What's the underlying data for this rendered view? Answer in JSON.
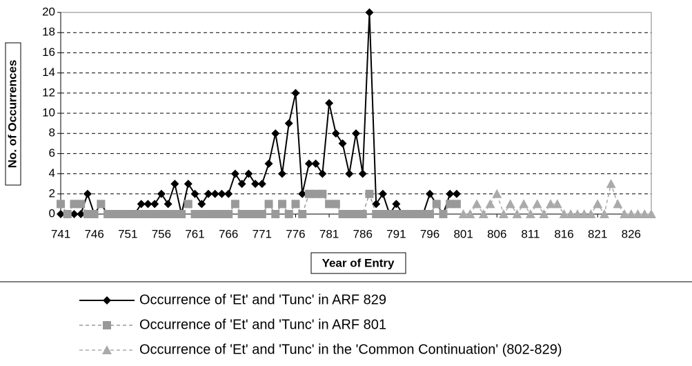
{
  "chart_data": {
    "type": "line",
    "y_label": "No. of Occurrences",
    "x_label": "Year of Entry",
    "x": [
      741,
      742,
      743,
      744,
      745,
      746,
      747,
      748,
      749,
      750,
      751,
      752,
      753,
      754,
      755,
      756,
      757,
      758,
      759,
      760,
      761,
      762,
      763,
      764,
      765,
      766,
      767,
      768,
      769,
      770,
      771,
      772,
      773,
      774,
      775,
      776,
      777,
      778,
      779,
      780,
      781,
      782,
      783,
      784,
      785,
      786,
      787,
      788,
      789,
      790,
      791,
      792,
      793,
      794,
      795,
      796,
      797,
      798,
      799,
      800,
      801,
      802,
      803,
      804,
      805,
      806,
      807,
      808,
      809,
      810,
      811,
      812,
      813,
      814,
      815,
      816,
      817,
      818,
      819,
      820,
      821,
      822,
      823,
      824,
      825,
      826,
      827,
      828,
      829
    ],
    "xlim": [
      741,
      829
    ],
    "xticks": [
      741,
      746,
      751,
      756,
      761,
      766,
      771,
      776,
      781,
      786,
      791,
      796,
      801,
      806,
      811,
      816,
      821,
      826
    ],
    "ylim": [
      0,
      20
    ],
    "yticks": [
      0,
      2,
      4,
      6,
      8,
      10,
      12,
      14,
      16,
      18,
      20
    ],
    "grid": true,
    "series": [
      {
        "name": "Occurrence of 'Et' and 'Tunc' in ARF 829",
        "color": "#000000",
        "marker": "diamond",
        "line_style": "solid",
        "values": [
          0,
          0,
          0,
          0,
          2,
          0,
          1,
          0,
          0,
          0,
          0,
          0,
          1,
          1,
          1,
          2,
          1,
          3,
          0,
          3,
          2,
          1,
          2,
          2,
          2,
          2,
          4,
          3,
          4,
          3,
          3,
          5,
          8,
          4,
          9,
          12,
          2,
          5,
          5,
          4,
          11,
          8,
          7,
          4,
          8,
          4,
          20,
          1,
          2,
          0,
          1,
          0,
          0,
          0,
          0,
          2,
          1,
          0,
          2,
          2,
          null,
          null,
          null,
          null,
          null,
          null,
          null,
          null,
          null,
          null,
          null,
          null,
          null,
          null,
          null,
          null,
          null,
          null,
          null,
          null,
          null,
          null,
          null,
          null,
          null,
          null,
          null,
          null,
          null
        ]
      },
      {
        "name": "Occurrence of 'Et' and 'Tunc' in ARF 801",
        "color": "#999999",
        "marker": "square",
        "line_style": "dashed",
        "values": [
          1,
          0,
          1,
          1,
          0,
          0,
          1,
          0,
          0,
          0,
          0,
          0,
          0,
          0,
          0,
          0,
          0,
          0,
          0,
          1,
          0,
          0,
          0,
          0,
          0,
          0,
          1,
          0,
          0,
          0,
          0,
          1,
          0,
          1,
          0,
          1,
          0,
          2,
          2,
          2,
          1,
          1,
          0,
          0,
          0,
          0,
          2,
          0,
          0,
          0,
          0,
          0,
          0,
          0,
          0,
          0,
          1,
          0,
          1,
          1,
          null,
          null,
          null,
          null,
          null,
          null,
          null,
          null,
          null,
          null,
          null,
          null,
          null,
          null,
          null,
          null,
          null,
          null,
          null,
          null,
          null,
          null,
          null,
          null,
          null,
          null,
          null,
          null,
          null
        ]
      },
      {
        "name": "Occurrence of 'Et' and 'Tunc' in the 'Common Continuation' (802-829)",
        "color": "#aaaaaa",
        "marker": "triangle",
        "line_style": "dashed",
        "values": [
          null,
          null,
          null,
          null,
          null,
          null,
          null,
          null,
          null,
          null,
          null,
          null,
          null,
          null,
          null,
          null,
          null,
          null,
          null,
          null,
          null,
          null,
          null,
          null,
          null,
          null,
          null,
          null,
          null,
          null,
          null,
          null,
          null,
          null,
          null,
          null,
          null,
          null,
          null,
          null,
          null,
          null,
          null,
          null,
          null,
          null,
          null,
          null,
          null,
          null,
          null,
          null,
          null,
          null,
          null,
          null,
          null,
          null,
          null,
          null,
          0,
          0,
          1,
          0,
          1,
          2,
          0,
          1,
          0,
          1,
          0,
          1,
          0,
          1,
          1,
          0,
          0,
          0,
          0,
          0,
          1,
          0,
          3,
          1,
          0,
          0,
          0,
          0,
          0
        ]
      }
    ]
  }
}
